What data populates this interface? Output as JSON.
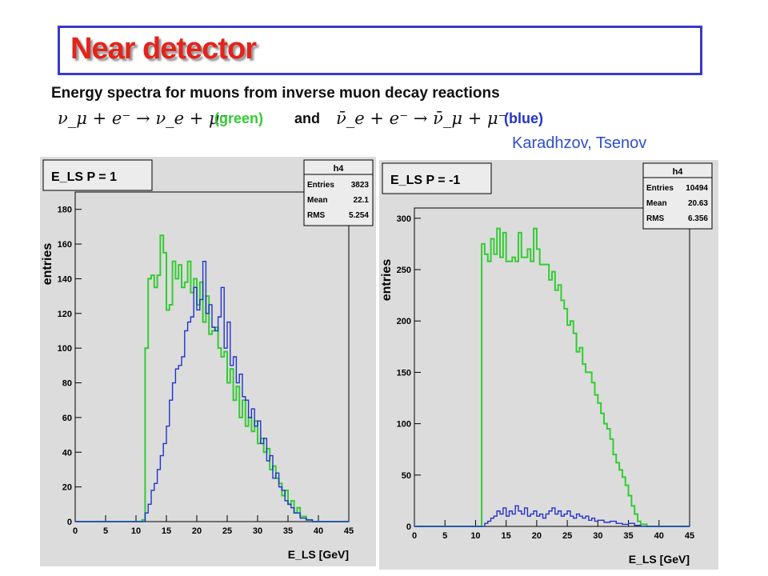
{
  "slide": {
    "title": "Near detector",
    "subtitle": "Energy spectra for muons from inverse muon decay reactions",
    "reaction1": "ν_μ + e⁻ → ν_e + μ⁻",
    "reaction1_color_label": "(green)",
    "connector": "and",
    "reaction2": "ν̄_e + e⁻ → ν̄_μ + μ⁻",
    "reaction2_color_label": "(blue)",
    "authors": "Karadhzov, Tsenov",
    "colors": {
      "title": "#e4231b",
      "green": "#33cc33",
      "blue": "#2233cc",
      "authors": "#2f4fd0"
    }
  },
  "chart_data": [
    {
      "type": "histogram",
      "title": "E_LS  P = 1",
      "xlabel": "E_LS [GeV]",
      "ylabel": "entries",
      "xlim": [
        0,
        45
      ],
      "ylim": [
        0,
        190
      ],
      "xticks": [
        0,
        5,
        10,
        15,
        20,
        25,
        30,
        35,
        40,
        45
      ],
      "yticks": [
        0,
        20,
        40,
        60,
        80,
        100,
        120,
        140,
        160,
        180
      ],
      "stats": {
        "name": "h4",
        "entries": "3823",
        "mean": "22.1",
        "rms": "5.254"
      },
      "series": [
        {
          "color": "green",
          "points": [
            [
              0,
              0
            ],
            [
              10.5,
              0
            ],
            [
              11,
              1
            ],
            [
              11.5,
              100
            ],
            [
              12,
              140
            ],
            [
              12.5,
              142
            ],
            [
              13,
              135
            ],
            [
              13.5,
              142
            ],
            [
              14,
              165
            ],
            [
              14.5,
              155
            ],
            [
              15,
              122
            ],
            [
              15.5,
              125
            ],
            [
              16,
              150
            ],
            [
              16.5,
              140
            ],
            [
              17,
              148
            ],
            [
              17.5,
              135
            ],
            [
              18,
              138
            ],
            [
              18.5,
              150
            ],
            [
              19,
              132
            ],
            [
              19.5,
              140
            ],
            [
              20,
              125
            ],
            [
              20.5,
              138
            ],
            [
              21,
              115
            ],
            [
              21.5,
              130
            ],
            [
              22,
              108
            ],
            [
              22.5,
              110
            ],
            [
              23,
              112
            ],
            [
              23.5,
              100
            ],
            [
              24,
              95
            ],
            [
              24.5,
              98
            ],
            [
              25,
              80
            ],
            [
              25.5,
              88
            ],
            [
              26,
              70
            ],
            [
              26.5,
              78
            ],
            [
              27,
              60
            ],
            [
              27.5,
              70
            ],
            [
              28,
              55
            ],
            [
              28.5,
              60
            ],
            [
              29,
              52
            ],
            [
              29.5,
              58
            ],
            [
              30,
              45
            ],
            [
              30.5,
              48
            ],
            [
              31,
              40
            ],
            [
              31.5,
              42
            ],
            [
              32,
              30
            ],
            [
              32.5,
              32
            ],
            [
              33,
              25
            ],
            [
              33.5,
              22
            ],
            [
              34,
              15
            ],
            [
              34.5,
              18
            ],
            [
              35,
              10
            ],
            [
              35.5,
              12
            ],
            [
              36,
              5
            ],
            [
              36.5,
              8
            ],
            [
              37,
              3
            ],
            [
              38,
              1
            ],
            [
              39,
              0
            ],
            [
              45,
              0
            ]
          ]
        },
        {
          "color": "blue",
          "points": [
            [
              0,
              0
            ],
            [
              11,
              0
            ],
            [
              11.5,
              5
            ],
            [
              12,
              10
            ],
            [
              12.5,
              18
            ],
            [
              13,
              22
            ],
            [
              13.5,
              30
            ],
            [
              14,
              38
            ],
            [
              14.5,
              45
            ],
            [
              15,
              55
            ],
            [
              15.5,
              70
            ],
            [
              16,
              80
            ],
            [
              16.5,
              88
            ],
            [
              17,
              90
            ],
            [
              17.5,
              95
            ],
            [
              18,
              110
            ],
            [
              18.5,
              115
            ],
            [
              19,
              118
            ],
            [
              19.5,
              135
            ],
            [
              20,
              122
            ],
            [
              20.5,
              128
            ],
            [
              21,
              150
            ],
            [
              21.5,
              120
            ],
            [
              22,
              125
            ],
            [
              22.5,
              112
            ],
            [
              23,
              110
            ],
            [
              23.5,
              118
            ],
            [
              24,
              135
            ],
            [
              24.5,
              100
            ],
            [
              25,
              115
            ],
            [
              25.5,
              90
            ],
            [
              26,
              95
            ],
            [
              26.5,
              80
            ],
            [
              27,
              85
            ],
            [
              27.5,
              72
            ],
            [
              28,
              70
            ],
            [
              28.5,
              60
            ],
            [
              29,
              65
            ],
            [
              29.5,
              55
            ],
            [
              30,
              58
            ],
            [
              30.5,
              45
            ],
            [
              31,
              48
            ],
            [
              31.5,
              35
            ],
            [
              32,
              38
            ],
            [
              32.5,
              25
            ],
            [
              33,
              28
            ],
            [
              33.5,
              20
            ],
            [
              34,
              18
            ],
            [
              34.5,
              12
            ],
            [
              35,
              10
            ],
            [
              35.5,
              8
            ],
            [
              36,
              5
            ],
            [
              37,
              2
            ],
            [
              38,
              1
            ],
            [
              39,
              0
            ],
            [
              45,
              0
            ]
          ]
        }
      ]
    },
    {
      "type": "histogram",
      "title": "E_LS  P = -1",
      "xlabel": "E_LS [GeV]",
      "ylabel": "entries",
      "xlim": [
        0,
        45
      ],
      "ylim": [
        0,
        310
      ],
      "xticks": [
        0,
        5,
        10,
        15,
        20,
        25,
        30,
        35,
        40,
        45
      ],
      "yticks": [
        0,
        50,
        100,
        150,
        200,
        250,
        300
      ],
      "stats": {
        "name": "h4",
        "entries": "10494",
        "mean": "20.63",
        "rms": "6.356"
      },
      "series": [
        {
          "color": "green",
          "points": [
            [
              0,
              0
            ],
            [
              10.5,
              0
            ],
            [
              11,
              275
            ],
            [
              11.5,
              265
            ],
            [
              12,
              258
            ],
            [
              12.5,
              280
            ],
            [
              13,
              265
            ],
            [
              13.5,
              290
            ],
            [
              14,
              262
            ],
            [
              14.5,
              286
            ],
            [
              15,
              258
            ],
            [
              16,
              262
            ],
            [
              16.5,
              258
            ],
            [
              17,
              286
            ],
            [
              17.5,
              262
            ],
            [
              18,
              262
            ],
            [
              18.5,
              270
            ],
            [
              19,
              258
            ],
            [
              19.5,
              290
            ],
            [
              20,
              270
            ],
            [
              20.5,
              255
            ],
            [
              21,
              255
            ],
            [
              22,
              240
            ],
            [
              22.5,
              248
            ],
            [
              23,
              230
            ],
            [
              23.5,
              235
            ],
            [
              24,
              220
            ],
            [
              24.5,
              212
            ],
            [
              25,
              196
            ],
            [
              25.5,
              200
            ],
            [
              26,
              188
            ],
            [
              26.5,
              170
            ],
            [
              27,
              174
            ],
            [
              27.5,
              158
            ],
            [
              28,
              150
            ],
            [
              29,
              140
            ],
            [
              29.5,
              128
            ],
            [
              30,
              120
            ],
            [
              30.5,
              110
            ],
            [
              31,
              100
            ],
            [
              31.5,
              95
            ],
            [
              32,
              85
            ],
            [
              32.5,
              70
            ],
            [
              33,
              62
            ],
            [
              33.5,
              55
            ],
            [
              34,
              48
            ],
            [
              34.5,
              40
            ],
            [
              35,
              30
            ],
            [
              35.5,
              20
            ],
            [
              36,
              12
            ],
            [
              36.5,
              5
            ],
            [
              37,
              2
            ],
            [
              38,
              0
            ],
            [
              45,
              0
            ]
          ]
        },
        {
          "color": "blue",
          "points": [
            [
              0,
              0
            ],
            [
              11,
              0
            ],
            [
              11.5,
              3
            ],
            [
              12,
              5
            ],
            [
              12.5,
              8
            ],
            [
              13,
              10
            ],
            [
              13.5,
              15
            ],
            [
              14,
              12
            ],
            [
              14.5,
              18
            ],
            [
              15,
              10
            ],
            [
              15.5,
              15
            ],
            [
              16,
              12
            ],
            [
              16.5,
              20
            ],
            [
              17,
              15
            ],
            [
              17.5,
              12
            ],
            [
              18,
              18
            ],
            [
              18.5,
              10
            ],
            [
              19,
              12
            ],
            [
              19.5,
              15
            ],
            [
              20,
              10
            ],
            [
              20.5,
              12
            ],
            [
              21,
              8
            ],
            [
              21.5,
              12
            ],
            [
              22,
              15
            ],
            [
              22.5,
              18
            ],
            [
              23,
              12
            ],
            [
              23.5,
              15
            ],
            [
              24,
              10
            ],
            [
              24.5,
              12
            ],
            [
              25,
              15
            ],
            [
              25.5,
              10
            ],
            [
              26,
              8
            ],
            [
              26.5,
              12
            ],
            [
              27,
              10
            ],
            [
              27.5,
              8
            ],
            [
              28,
              10
            ],
            [
              28.5,
              6
            ],
            [
              29,
              8
            ],
            [
              29.5,
              5
            ],
            [
              30,
              6
            ],
            [
              31,
              4
            ],
            [
              32,
              5
            ],
            [
              33,
              3
            ],
            [
              34,
              2
            ],
            [
              35,
              3
            ],
            [
              36,
              1
            ],
            [
              37,
              0
            ],
            [
              45,
              0
            ]
          ]
        }
      ]
    }
  ]
}
